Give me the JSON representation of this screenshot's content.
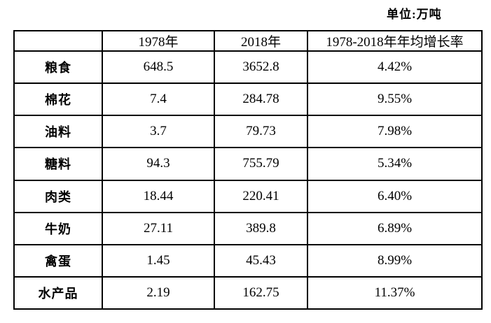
{
  "unit_label": "单位:万吨",
  "chart_data": {
    "type": "table",
    "title": "",
    "unit": "万吨",
    "columns": [
      "",
      "1978年",
      "2018年",
      "1978-2018年年均增长率"
    ],
    "rows": [
      [
        "粮食",
        "648.5",
        "3652.8",
        "4.42%"
      ],
      [
        "棉花",
        "7.4",
        "284.78",
        "9.55%"
      ],
      [
        "油料",
        "3.7",
        "79.73",
        "7.98%"
      ],
      [
        "糖料",
        "94.3",
        "755.79",
        "5.34%"
      ],
      [
        "肉类",
        "18.44",
        "220.41",
        "6.40%"
      ],
      [
        "牛奶",
        "27.11",
        "389.8",
        "6.89%"
      ],
      [
        "禽蛋",
        "1.45",
        "45.43",
        "8.99%"
      ],
      [
        "水产品",
        "2.19",
        "162.75",
        "11.37%"
      ]
    ]
  }
}
